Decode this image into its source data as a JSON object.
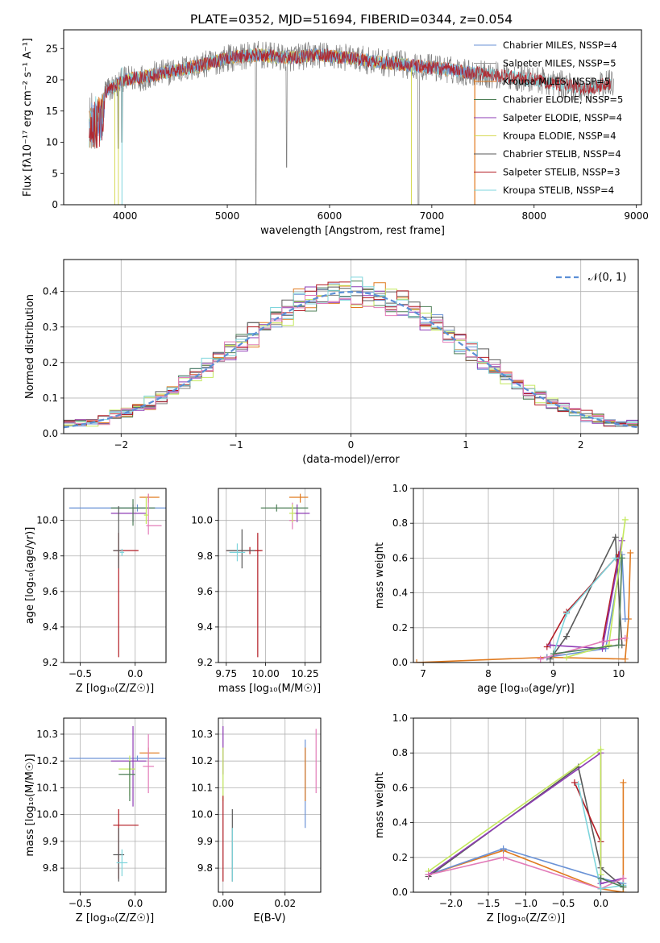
{
  "figure_title": "PLATE=0352, MJD=51694, FIBERID=0344, z=0.054",
  "colors": {
    "c1": "#6a92d6",
    "c2": "#ffffff",
    "c3": "#e07a1f",
    "c4": "#4e7f57",
    "c5": "#8e3bb5",
    "c6": "#d6d957",
    "c7": "#5a5a5a",
    "c8": "#b31c24",
    "c9": "#7ed5dc",
    "gray": "#808080",
    "pink": "#e27bb8",
    "lime": "#c3e85c",
    "grid": "#b0b0b0",
    "gauss": "#5b8fd6"
  },
  "chart_data": [
    {
      "id": "spectrum",
      "type": "line",
      "xlabel": "wavelength [Angstrom, rest frame]",
      "ylabel": "Flux [fλ10⁻¹⁷ erg cm⁻² s⁻¹ A⁻¹]",
      "xlim": [
        3400,
        9050
      ],
      "ylim": [
        0,
        28
      ],
      "xticks": [
        4000,
        5000,
        6000,
        7000,
        8000,
        9000
      ],
      "yticks": [
        0,
        5,
        10,
        15,
        20,
        25
      ],
      "grid": false,
      "legend_position": "top-right",
      "legend": [
        {
          "label": "Chabrier MILES, NSSP=4",
          "color": "#6a92d6"
        },
        {
          "label": "Salpeter MILES, NSSP=5",
          "color": "#9a9a9a"
        },
        {
          "label": "Kroupa MILES, NSSP=5",
          "color": "#e07a1f"
        },
        {
          "label": "Chabrier ELODIE, NSSP=5",
          "color": "#4e7f57"
        },
        {
          "label": "Salpeter ELODIE, NSSP=4",
          "color": "#8e3bb5"
        },
        {
          "label": "Kroupa ELODIE, NSSP=4",
          "color": "#d6d957"
        },
        {
          "label": "Chabrier STELIB, NSSP=4",
          "color": "#5a5a5a"
        },
        {
          "label": "Salpeter STELIB, NSSP=3",
          "color": "#b31c24"
        },
        {
          "label": "Kroupa STELIB, NSSP=4",
          "color": "#7ed5dc"
        }
      ],
      "continuum": {
        "x": [
          3650,
          3800,
          4000,
          4200,
          4500,
          4800,
          5000,
          5300,
          5600,
          5900,
          6200,
          6500,
          6800,
          7100,
          7300,
          7600,
          7900,
          8200,
          8500,
          8750
        ],
        "y": [
          16,
          18,
          20,
          20.5,
          21.5,
          22.5,
          23.5,
          24,
          23.5,
          24,
          23.5,
          22.8,
          22.3,
          21.8,
          21.3,
          20.8,
          20.2,
          19.5,
          18.5,
          19.5
        ]
      },
      "data_range": [
        3650,
        8780
      ],
      "model_ranges": {
        "miles": [
          3650,
          7420
        ],
        "elodie": [
          3900,
          6800
        ],
        "stelib": [
          3650,
          8750
        ]
      }
    },
    {
      "id": "residuals",
      "type": "histogram",
      "xlabel": "(data-model)/error",
      "ylabel": "Normed distribution",
      "xlim": [
        -2.5,
        2.5
      ],
      "ylim": [
        0,
        0.49
      ],
      "xticks": [
        -2,
        -1,
        0,
        1,
        2
      ],
      "yticks": [
        0,
        0.1,
        0.2,
        0.3,
        0.4
      ],
      "grid": true,
      "legend_position": "top-right",
      "gauss_label": "𝒩(0, 1)",
      "bin_width": 0.1
    },
    {
      "id": "age_vs_Z",
      "type": "errorbar",
      "xlabel": "Z [log₁₀(Z/Z☉)]",
      "ylabel": "age  [log₁₀(age/yr)]",
      "xlim": [
        -0.65,
        0.28
      ],
      "ylim": [
        9.2,
        10.18
      ],
      "xticks": [
        -0.5,
        0.0
      ],
      "yticks": [
        9.2,
        9.4,
        9.6,
        9.8,
        10.0
      ],
      "grid": true
    },
    {
      "id": "age_vs_mass",
      "type": "errorbar",
      "xlabel": "mass [log₁₀(M/M☉)]",
      "xlim": [
        9.7,
        10.35
      ],
      "ylim": [
        9.2,
        10.18
      ],
      "xticks": [
        9.75,
        10.0,
        10.25
      ],
      "yticks": [
        9.2,
        9.4,
        9.6,
        9.8,
        10.0
      ],
      "grid": true
    },
    {
      "id": "massweight_vs_age",
      "type": "line",
      "xlabel": "age  [log₁₀(age/yr)]",
      "ylabel": "mass weight",
      "xlim": [
        6.85,
        10.3
      ],
      "ylim": [
        0,
        1.0
      ],
      "xticks": [
        7,
        8,
        9,
        10
      ],
      "yticks": [
        0.0,
        0.2,
        0.4,
        0.6,
        0.8,
        1.0
      ],
      "grid": true
    },
    {
      "id": "mass_vs_Z",
      "type": "errorbar",
      "xlabel": "Z [log₁₀(Z/Z☉)]",
      "ylabel": "mass [log₁₀(M/M☉)]",
      "xlim": [
        -0.65,
        0.28
      ],
      "ylim": [
        9.71,
        10.36
      ],
      "xticks": [
        -0.5,
        0.0
      ],
      "yticks": [
        9.8,
        9.9,
        10.0,
        10.1,
        10.2,
        10.3
      ],
      "grid": true
    },
    {
      "id": "mass_vs_ebv",
      "type": "errorbar",
      "xlabel": "E(B-V)",
      "xlim": [
        -0.0015,
        0.0315
      ],
      "ylim": [
        9.71,
        10.36
      ],
      "xticks": [
        0.0,
        0.02
      ],
      "yticks": [
        9.8,
        9.9,
        10.0,
        10.1,
        10.2,
        10.3
      ],
      "grid": true
    },
    {
      "id": "massweight_vs_Z",
      "type": "line",
      "xlabel": "Z [log₁₀(Z/Z☉)]",
      "ylabel": "mass weight",
      "xlim": [
        -2.5,
        0.5
      ],
      "ylim": [
        0,
        1.0
      ],
      "xticks": [
        -2.0,
        -1.5,
        -1.0,
        -0.5,
        0.0
      ],
      "yticks": [
        0.0,
        0.2,
        0.4,
        0.6,
        0.8,
        1.0
      ],
      "grid": true
    }
  ]
}
